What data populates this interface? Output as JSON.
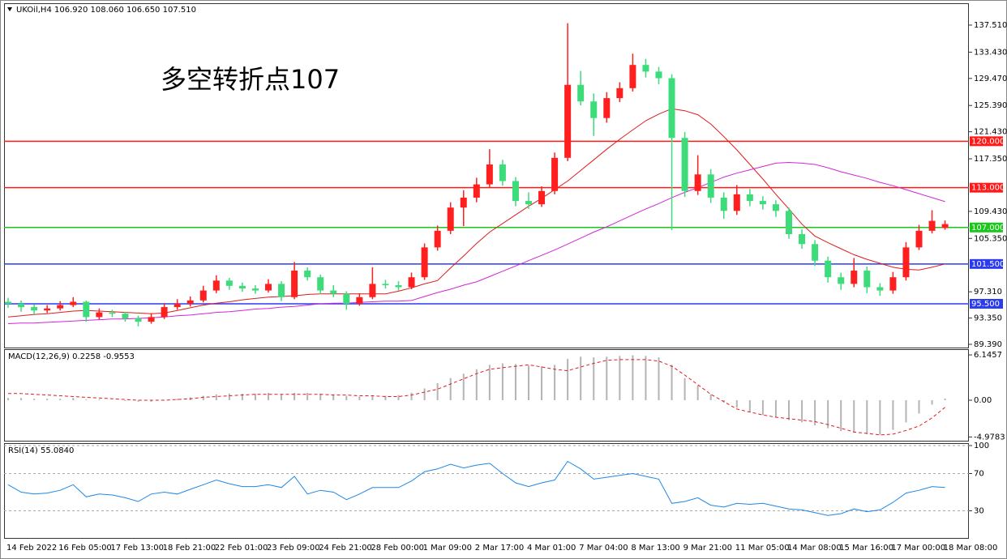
{
  "chart_data": [
    {
      "type": "candlestick",
      "title": "UKOil,H4  106.920 108.060 106.650 107.510",
      "annotation": "多空转折点107",
      "annotation_color": "#ff1a1a",
      "categories": [
        "14 Feb 2022",
        null,
        null,
        null,
        "16 Feb 05:00",
        null,
        null,
        null,
        "17 Feb 13:00",
        null,
        null,
        null,
        "18 Feb 21:00",
        null,
        null,
        null,
        "22 Feb 01:00",
        null,
        null,
        null,
        "23 Feb 09:00",
        null,
        null,
        null,
        "24 Feb 21:00",
        null,
        null,
        null,
        "28 Feb 00:00",
        null,
        null,
        null,
        "1 Mar 09:00",
        null,
        null,
        null,
        "2 Mar 17:00",
        null,
        null,
        null,
        "4 Mar 01:00",
        null,
        null,
        null,
        "7 Mar 04:00",
        null,
        null,
        null,
        "8 Mar 13:00",
        null,
        null,
        null,
        "9 Mar 21:00",
        null,
        null,
        null,
        "11 Mar 05:00",
        null,
        null,
        null,
        "14 Mar 08:00",
        null,
        null,
        null,
        "15 Mar 16:00",
        null,
        null,
        null,
        "17 Mar 00:00",
        null,
        null,
        null,
        "18 Mar 08:00"
      ],
      "ohlc": [
        [
          95.8,
          96.4,
          94.9,
          95.5
        ],
        [
          95.5,
          96.0,
          94.3,
          95.0
        ],
        [
          95.0,
          95.4,
          93.9,
          94.5
        ],
        [
          94.5,
          95.3,
          94.1,
          94.8
        ],
        [
          94.8,
          95.9,
          94.5,
          95.3
        ],
        [
          95.3,
          96.5,
          95.0,
          95.8
        ],
        [
          95.8,
          96.0,
          92.8,
          93.5
        ],
        [
          93.5,
          94.8,
          93.1,
          94.2
        ],
        [
          94.2,
          94.6,
          93.5,
          94.0
        ],
        [
          94.0,
          94.3,
          92.8,
          93.3
        ],
        [
          93.3,
          93.7,
          92.1,
          92.8
        ],
        [
          92.8,
          94.1,
          92.5,
          93.5
        ],
        [
          93.5,
          95.6,
          93.2,
          95.0
        ],
        [
          95.0,
          96.2,
          94.6,
          95.5
        ],
        [
          95.5,
          96.6,
          95.1,
          96.0
        ],
        [
          96.0,
          98.2,
          95.7,
          97.5
        ],
        [
          97.5,
          99.8,
          97.1,
          99.0
        ],
        [
          99.0,
          99.4,
          97.6,
          98.2
        ],
        [
          98.2,
          98.7,
          97.3,
          97.8
        ],
        [
          97.8,
          98.3,
          97.0,
          97.5
        ],
        [
          97.5,
          99.2,
          97.2,
          98.5
        ],
        [
          98.5,
          98.9,
          95.9,
          96.5
        ],
        [
          96.5,
          101.8,
          96.2,
          100.5
        ],
        [
          100.5,
          101.0,
          99.0,
          99.5
        ],
        [
          99.5,
          99.9,
          96.9,
          97.5
        ],
        [
          97.5,
          98.3,
          96.5,
          97.0
        ],
        [
          97.0,
          97.4,
          94.6,
          95.5
        ],
        [
          95.5,
          97.1,
          95.2,
          96.5
        ],
        [
          96.5,
          101.0,
          96.2,
          98.5
        ],
        [
          98.5,
          99.1,
          97.8,
          98.3
        ],
        [
          98.3,
          98.9,
          97.5,
          98.0
        ],
        [
          98.0,
          100.2,
          97.7,
          99.5
        ],
        [
          99.5,
          104.6,
          99.1,
          104.0
        ],
        [
          104.0,
          107.3,
          103.5,
          106.5
        ],
        [
          106.5,
          110.8,
          106.0,
          110.0
        ],
        [
          110.0,
          112.6,
          107.2,
          111.5
        ],
        [
          111.5,
          114.5,
          110.8,
          113.5
        ],
        [
          113.5,
          118.8,
          113.0,
          116.5
        ],
        [
          116.5,
          117.2,
          113.3,
          114.0
        ],
        [
          114.0,
          114.6,
          110.2,
          111.0
        ],
        [
          111.0,
          112.3,
          109.8,
          110.5
        ],
        [
          110.5,
          113.2,
          110.1,
          112.5
        ],
        [
          112.5,
          118.3,
          112.0,
          117.5
        ],
        [
          117.5,
          137.8,
          117.0,
          128.5
        ],
        [
          128.5,
          130.6,
          125.4,
          126.0
        ],
        [
          126.0,
          127.2,
          120.8,
          123.5
        ],
        [
          123.5,
          127.4,
          122.8,
          126.5
        ],
        [
          126.5,
          128.9,
          125.9,
          128.0
        ],
        [
          128.0,
          133.2,
          127.5,
          131.5
        ],
        [
          131.5,
          132.4,
          129.6,
          130.5
        ],
        [
          130.5,
          131.2,
          128.6,
          129.5
        ],
        [
          129.5,
          130.1,
          106.6,
          120.5
        ],
        [
          120.5,
          121.4,
          111.6,
          112.5
        ],
        [
          112.5,
          117.9,
          111.9,
          115.0
        ],
        [
          115.0,
          115.8,
          110.7,
          111.5
        ],
        [
          111.5,
          112.3,
          108.3,
          109.5
        ],
        [
          109.5,
          113.4,
          108.9,
          112.0
        ],
        [
          112.0,
          112.8,
          110.2,
          111.0
        ],
        [
          111.0,
          111.7,
          109.7,
          110.5
        ],
        [
          110.5,
          111.1,
          108.6,
          109.5
        ],
        [
          109.5,
          110.0,
          105.3,
          106.0
        ],
        [
          106.0,
          106.7,
          103.8,
          104.5
        ],
        [
          104.5,
          105.1,
          101.2,
          102.0
        ],
        [
          102.0,
          102.6,
          98.7,
          99.5
        ],
        [
          99.5,
          100.2,
          97.6,
          98.5
        ],
        [
          98.5,
          102.4,
          98.0,
          100.5
        ],
        [
          100.5,
          101.1,
          97.1,
          98.0
        ],
        [
          98.0,
          98.6,
          96.7,
          97.5
        ],
        [
          97.5,
          100.3,
          97.0,
          99.5
        ],
        [
          99.5,
          104.8,
          99.0,
          104.0
        ],
        [
          104.0,
          107.4,
          103.6,
          106.5
        ],
        [
          106.5,
          109.6,
          106.1,
          108.0
        ],
        [
          106.92,
          108.06,
          106.65,
          107.51
        ]
      ],
      "up_color": "#ff1f1f",
      "down_color": "#3ddc7a",
      "series": [
        {
          "color": "#e01c1c",
          "values": [
            93.5,
            93.7,
            93.9,
            94.0,
            94.2,
            94.4,
            94.5,
            94.4,
            94.3,
            94.2,
            94.1,
            94.0,
            94.1,
            94.5,
            94.9,
            95.3,
            95.6,
            95.8,
            96.1,
            96.3,
            96.5,
            96.6,
            96.7,
            96.9,
            97.0,
            97.0,
            97.0,
            97.0,
            97.0,
            97.0,
            97.4,
            97.9,
            98.5,
            99.0,
            100.9,
            102.7,
            104.6,
            106.3,
            107.6,
            108.9,
            110.2,
            111.4,
            112.7,
            114.0,
            115.6,
            117.2,
            118.8,
            120.3,
            121.7,
            123.1,
            124.1,
            124.9,
            124.6,
            124.0,
            122.6,
            120.7,
            118.7,
            116.5,
            114.3,
            112.0,
            109.8,
            107.5,
            105.7,
            104.7,
            103.8,
            102.9,
            102.2,
            101.6,
            101.0,
            100.7,
            100.6,
            101.0,
            101.5
          ]
        },
        {
          "color": "#d126d6",
          "values": [
            92.5,
            92.6,
            92.6,
            92.7,
            92.8,
            92.9,
            93.0,
            93.1,
            93.2,
            93.2,
            93.3,
            93.4,
            93.5,
            93.7,
            93.8,
            94.0,
            94.2,
            94.3,
            94.5,
            94.7,
            94.8,
            95.0,
            95.1,
            95.3,
            95.5,
            95.6,
            95.6,
            95.7,
            95.8,
            95.9,
            95.9,
            96.0,
            96.6,
            97.2,
            97.7,
            98.3,
            98.8,
            99.6,
            100.4,
            101.2,
            102.0,
            102.8,
            103.6,
            104.5,
            105.4,
            106.3,
            107.1,
            108.0,
            108.9,
            109.8,
            110.6,
            111.5,
            112.3,
            113.0,
            113.8,
            114.6,
            115.2,
            115.7,
            116.2,
            116.7,
            116.8,
            116.7,
            116.5,
            116.0,
            115.4,
            114.9,
            114.4,
            113.8,
            113.3,
            112.7,
            112.1,
            111.5,
            110.9
          ]
        }
      ],
      "levels": [
        {
          "value": 120,
          "label": "120.000",
          "color": "#ff1a1a"
        },
        {
          "value": 113,
          "label": "113.000",
          "color": "#ff1a1a"
        },
        {
          "value": 107,
          "label": "107.000",
          "color": "#19c819"
        },
        {
          "value": 101.5,
          "label": "101.500",
          "color": "#2b3cf0"
        },
        {
          "value": 95.5,
          "label": "95.500",
          "color": "#2b3cf0"
        }
      ],
      "ylim": [
        88.78,
        140.68
      ],
      "yticks": [
        {
          "value": 137.51,
          "label": "137.510"
        },
        {
          "value": 133.43,
          "label": "133.430"
        },
        {
          "value": 129.47,
          "label": "129.470"
        },
        {
          "value": 125.39,
          "label": "125.390"
        },
        {
          "value": 121.43,
          "label": "121.430"
        },
        {
          "value": 117.35,
          "label": "117.350"
        },
        {
          "value": 109.43,
          "label": "109.430"
        },
        {
          "value": 105.35,
          "label": "105.350"
        },
        {
          "value": 97.31,
          "label": "97.310"
        },
        {
          "value": 93.35,
          "label": "93.350"
        },
        {
          "value": 89.39,
          "label": "89.390"
        }
      ]
    },
    {
      "type": "macd",
      "title": "MACD(12,26,9) 0.2258 -0.9553",
      "histogram": {
        "color": "#b4b4b4",
        "values": [
          0.3,
          0.3,
          0.2,
          0.2,
          0.2,
          0.3,
          0.1,
          0.1,
          0.0,
          -0.1,
          -0.2,
          -0.2,
          0.0,
          0.2,
          0.4,
          0.6,
          0.8,
          0.9,
          0.9,
          0.9,
          1.0,
          0.8,
          1.0,
          1.0,
          0.9,
          0.8,
          0.6,
          0.5,
          0.6,
          0.6,
          0.7,
          1.0,
          1.6,
          2.3,
          3.0,
          3.6,
          4.2,
          4.8,
          5.0,
          4.9,
          4.7,
          4.6,
          4.8,
          5.6,
          5.9,
          5.8,
          5.9,
          6.0,
          6.1,
          6.0,
          5.8,
          4.8,
          3.0,
          2.0,
          0.8,
          -0.3,
          -1.0,
          -1.6,
          -2.0,
          -2.3,
          -2.7,
          -3.0,
          -3.4,
          -3.8,
          -4.2,
          -4.4,
          -4.6,
          -4.7,
          -4.0,
          -3.0,
          -1.8,
          -0.6,
          0.2258
        ]
      },
      "signal": {
        "color": "#e01c1c",
        "values": [
          0.9,
          0.9,
          0.8,
          0.7,
          0.6,
          0.5,
          0.4,
          0.3,
          0.2,
          0.1,
          0.0,
          0.0,
          0.0,
          0.1,
          0.2,
          0.4,
          0.5,
          0.6,
          0.7,
          0.8,
          0.8,
          0.8,
          0.8,
          0.8,
          0.8,
          0.7,
          0.7,
          0.6,
          0.6,
          0.5,
          0.5,
          0.7,
          1.1,
          1.5,
          2.2,
          2.9,
          3.6,
          4.2,
          4.4,
          4.6,
          4.8,
          4.5,
          4.2,
          4.0,
          4.5,
          5.0,
          5.4,
          5.5,
          5.5,
          5.5,
          5.3,
          4.6,
          3.4,
          2.1,
          0.8,
          -0.2,
          -1.2,
          -1.6,
          -2.0,
          -2.3,
          -2.5,
          -2.7,
          -2.9,
          -3.3,
          -3.8,
          -4.3,
          -4.5,
          -4.7,
          -4.6,
          -4.1,
          -3.5,
          -2.4,
          -0.9553
        ]
      },
      "ylim": [
        -5.6,
        6.81
      ],
      "yticks": [
        6.1457,
        {
          "value": 0,
          "label": "0.00"
        },
        -4.9783
      ]
    },
    {
      "type": "line",
      "title": "RSI(14) 55.0840",
      "series": [
        {
          "color": "#1e88e5",
          "values": [
            58,
            50,
            48,
            49,
            52,
            58,
            45,
            48,
            47,
            44,
            40,
            48,
            50,
            48,
            53,
            58,
            63,
            59,
            56,
            56,
            58,
            55,
            67,
            48,
            52,
            50,
            42,
            48,
            55,
            55,
            55,
            62,
            72,
            75,
            80,
            76,
            79,
            81,
            70,
            60,
            56,
            60,
            63,
            83,
            75,
            64,
            66,
            68,
            70,
            67,
            64,
            38,
            40,
            44,
            36,
            34,
            38,
            37,
            38,
            35,
            32,
            31,
            28,
            25,
            27,
            32,
            29,
            31,
            39,
            49,
            52,
            56,
            55.084
          ]
        }
      ],
      "ylim": [
        0,
        100
      ],
      "yticks": [
        100,
        70,
        30
      ],
      "grid": true
    }
  ]
}
